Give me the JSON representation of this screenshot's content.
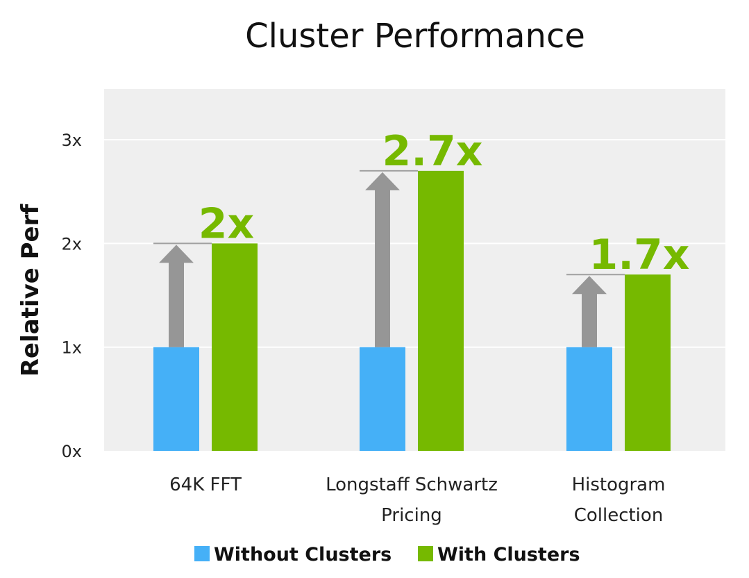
{
  "chart_data": {
    "type": "bar",
    "title": "Cluster Performance",
    "ylabel": "Relative Perf",
    "xlabel": "",
    "categories": [
      [
        "64K FFT"
      ],
      [
        "Longstaff Schwartz",
        "Pricing"
      ],
      [
        "Histogram",
        "Collection"
      ]
    ],
    "series": [
      {
        "name": "Without Clusters",
        "values": [
          1,
          1,
          1
        ],
        "color": "#45b0f7"
      },
      {
        "name": "With Clusters",
        "values": [
          2,
          2.7,
          1.7
        ],
        "color": "#76b900"
      }
    ],
    "data_labels": [
      "2x",
      "2.7x",
      "1.7x"
    ],
    "y_ticks": [
      {
        "value": 0,
        "label": "0x"
      },
      {
        "value": 1,
        "label": "1x"
      },
      {
        "value": 2,
        "label": "2x"
      },
      {
        "value": 3,
        "label": "3x"
      }
    ],
    "ylim": [
      0,
      3.5
    ],
    "grid": true,
    "legend_position": "bottom-center",
    "colors": {
      "plot_background": "#efefef",
      "gridline": "#ffffff",
      "arrow": "#969696",
      "reference_line": "#a0a0a0",
      "data_label": "#76b900",
      "text": "#222222"
    }
  }
}
